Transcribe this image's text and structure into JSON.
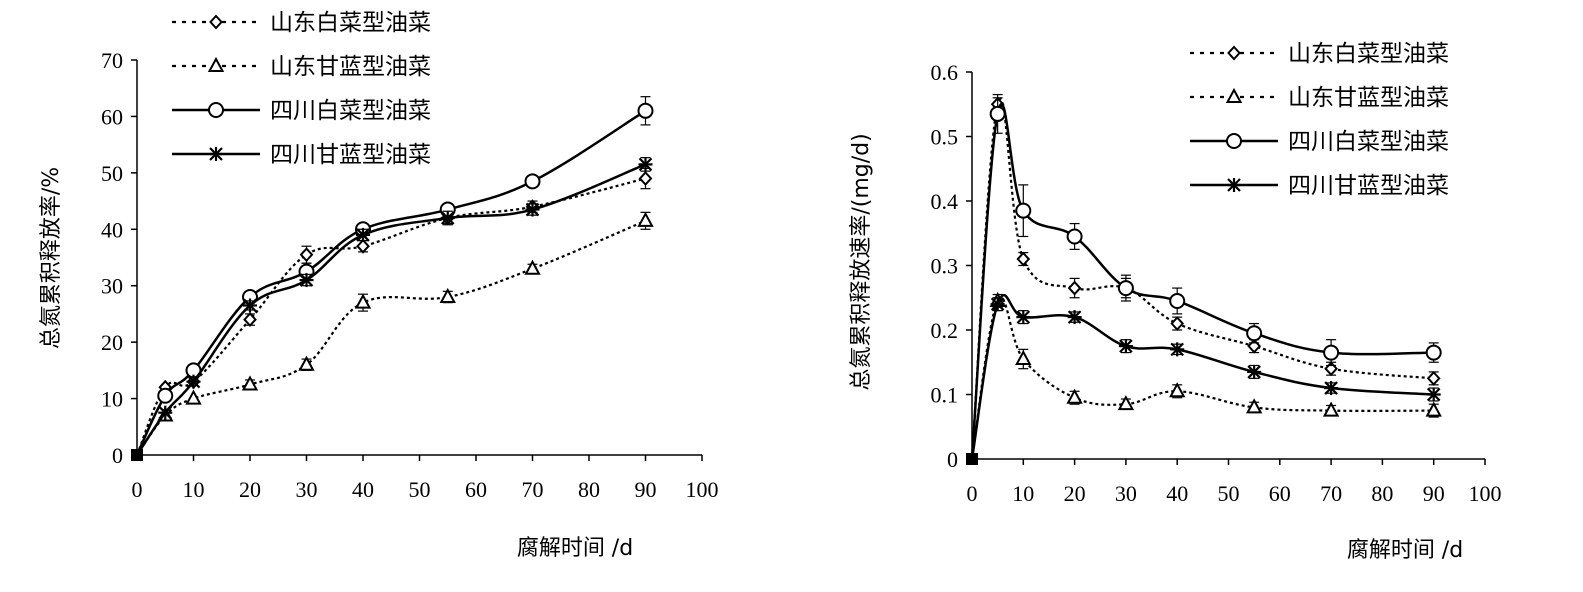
{
  "chart_data": [
    {
      "type": "line",
      "xlabel": "腐解时间 /d",
      "ylabel": "总氮累积释放率/%",
      "xlim": [
        0,
        100
      ],
      "ylim": [
        0,
        70
      ],
      "xticks": [
        "0",
        "10",
        "20",
        "30",
        "40",
        "50",
        "60",
        "70",
        "80",
        "90",
        "100"
      ],
      "yticks": [
        "0",
        "10",
        "20",
        "30",
        "40",
        "50",
        "60",
        "70"
      ],
      "legend_position": "top-left",
      "series": [
        {
          "name": "山东白菜型油菜",
          "style": "dotted",
          "marker": "diamond",
          "x": [
            0,
            5,
            10,
            20,
            30,
            40,
            55,
            70,
            90
          ],
          "y": [
            0,
            12,
            13,
            24,
            35.5,
            37,
            42,
            44,
            49
          ],
          "err": [
            0,
            0,
            0,
            1,
            1.5,
            1,
            1,
            1,
            1.8
          ]
        },
        {
          "name": "山东甘蓝型油菜",
          "style": "dotted",
          "marker": "triangle",
          "x": [
            0,
            5,
            10,
            20,
            30,
            40,
            55,
            70,
            90
          ],
          "y": [
            0,
            7,
            10,
            12.5,
            16,
            27,
            28,
            33,
            41.5
          ],
          "err": [
            0,
            0,
            0,
            0.8,
            1,
            1.5,
            1,
            0.8,
            1.5
          ]
        },
        {
          "name": "四川白菜型油菜",
          "style": "solid",
          "marker": "circle",
          "x": [
            0,
            5,
            10,
            20,
            30,
            40,
            55,
            70,
            90
          ],
          "y": [
            0,
            10.5,
            15,
            28,
            32.5,
            40,
            43.5,
            48.5,
            61
          ],
          "err": [
            0,
            0,
            0,
            0.8,
            1.5,
            1,
            1,
            1,
            2.5
          ]
        },
        {
          "name": "四川甘蓝型油菜",
          "style": "solid",
          "marker": "star",
          "x": [
            0,
            5,
            10,
            20,
            30,
            40,
            55,
            70,
            90
          ],
          "y": [
            0,
            7.5,
            13,
            26.5,
            31,
            39,
            42,
            43.5,
            51.5
          ],
          "err": [
            0,
            0,
            0,
            0.8,
            1,
            1,
            1.2,
            1,
            1.2
          ]
        }
      ]
    },
    {
      "type": "line",
      "xlabel": "腐解时间 /d",
      "ylabel": "总氮累积释放速率/(mg/d)",
      "xlim": [
        0,
        100
      ],
      "ylim": [
        0,
        0.6
      ],
      "xticks": [
        "0",
        "10",
        "20",
        "30",
        "40",
        "50",
        "60",
        "70",
        "80",
        "90",
        "100"
      ],
      "yticks": [
        "0",
        "0.1",
        "0.2",
        "0.3",
        "0.4",
        "0.5",
        "0.6"
      ],
      "legend_position": "top-right",
      "series": [
        {
          "name": "山东白菜型油菜",
          "style": "dotted",
          "marker": "diamond",
          "x": [
            0,
            5,
            10,
            20,
            30,
            40,
            55,
            70,
            90
          ],
          "y": [
            0,
            0.55,
            0.31,
            0.265,
            0.265,
            0.21,
            0.175,
            0.14,
            0.125
          ],
          "err": [
            0,
            0.01,
            0.01,
            0.015,
            0.015,
            0.01,
            0.01,
            0.01,
            0.01
          ]
        },
        {
          "name": "山东甘蓝型油菜",
          "style": "dotted",
          "marker": "triangle",
          "x": [
            0,
            5,
            10,
            20,
            30,
            40,
            55,
            70,
            90
          ],
          "y": [
            0,
            0.245,
            0.155,
            0.095,
            0.085,
            0.105,
            0.08,
            0.075,
            0.075
          ],
          "err": [
            0,
            0.01,
            0.015,
            0.01,
            0.008,
            0.01,
            0.008,
            0.008,
            0.01
          ]
        },
        {
          "name": "四川白菜型油菜",
          "style": "solid",
          "marker": "circle",
          "x": [
            0,
            5,
            10,
            20,
            30,
            40,
            55,
            70,
            90
          ],
          "y": [
            0,
            0.535,
            0.385,
            0.345,
            0.265,
            0.245,
            0.195,
            0.165,
            0.165
          ],
          "err": [
            0,
            0.03,
            0.04,
            0.02,
            0.02,
            0.02,
            0.015,
            0.02,
            0.015
          ]
        },
        {
          "name": "四川甘蓝型油菜",
          "style": "solid",
          "marker": "star",
          "x": [
            0,
            5,
            10,
            20,
            30,
            40,
            55,
            70,
            90
          ],
          "y": [
            0,
            0.24,
            0.22,
            0.22,
            0.175,
            0.17,
            0.135,
            0.11,
            0.1
          ],
          "err": [
            0,
            0.01,
            0.01,
            0.008,
            0.01,
            0.008,
            0.01,
            0.008,
            0.01
          ]
        }
      ]
    }
  ]
}
